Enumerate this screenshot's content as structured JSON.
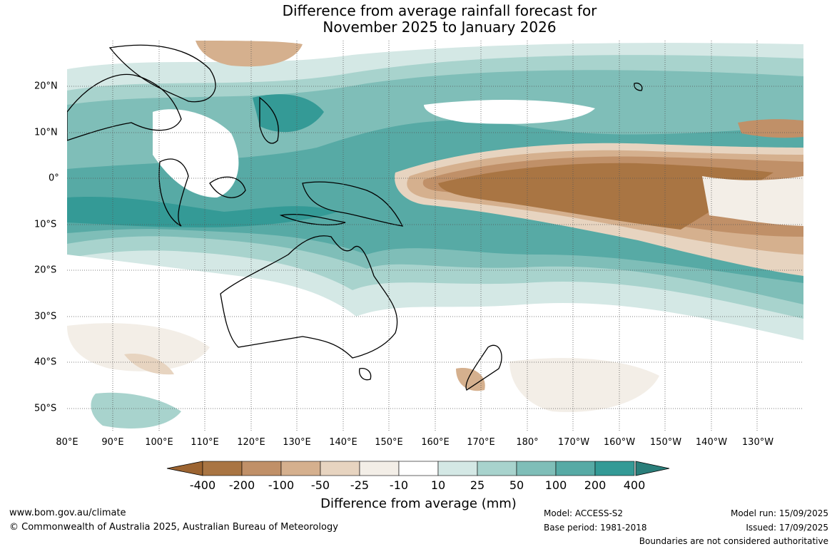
{
  "title": {
    "line1": "Difference from average rainfall forecast for",
    "line2": "November 2025 to January 2026"
  },
  "map": {
    "lon_labels": [
      "80°E",
      "90°E",
      "100°E",
      "110°E",
      "120°E",
      "130°E",
      "140°E",
      "150°E",
      "160°E",
      "170°E",
      "180°",
      "170°W",
      "160°W",
      "150°W",
      "140°W",
      "130°W"
    ],
    "lat_labels": [
      "20°N",
      "10°N",
      "0°",
      "10°S",
      "20°S",
      "30°S",
      "40°S",
      "50°S"
    ],
    "lon_range_deg_east": [
      80,
      240
    ],
    "lat_range": [
      -55,
      30
    ],
    "grid": true
  },
  "colorbar": {
    "labels": [
      "-400",
      "-200",
      "-100",
      "-50",
      "-25",
      "-10",
      "10",
      "25",
      "50",
      "100",
      "200",
      "400"
    ],
    "colors": [
      "#9c6431",
      "#a97543",
      "#c09068",
      "#d5b08e",
      "#e7d4c0",
      "#f3eee7",
      "#ffffff",
      "#d4e8e5",
      "#a8d3cd",
      "#7fbeb8",
      "#57aaa5",
      "#349a96",
      "#2a7e7a"
    ],
    "title": "Difference from average (mm)"
  },
  "footer": {
    "url": "www.bom.gov.au/climate",
    "copyright": "© Commonwealth of Australia 2025, Australian Bureau of Meteorology",
    "model": "Model: ACCESS-S2",
    "base_period": "Base period: 1981-2018",
    "model_run": "Model run: 15/09/2025",
    "issued": "Issued: 17/09/2025",
    "disclaimer": "Boundaries are not considered authoritative"
  }
}
